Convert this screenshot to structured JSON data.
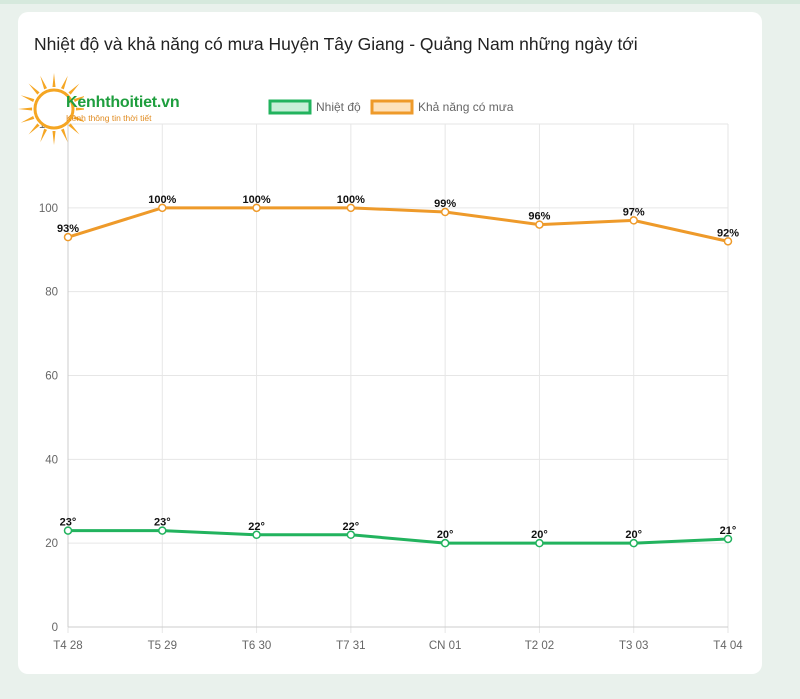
{
  "page": {
    "title": "Nhiệt độ và khả năng có mưa Huyện Tây Giang - Quảng Nam những ngày tới"
  },
  "logo": {
    "name": "Kenhthoitiet.vn",
    "tagline": "Kênh thông tin thời tiết"
  },
  "colors": {
    "temperature": "#22b35e",
    "rain": "#ee9a2a",
    "grid": "#e6e6e6",
    "logo_sun": "#f5a623",
    "logo_text": "#1e9e3e"
  },
  "chart_data": {
    "type": "line",
    "categories": [
      "T4 28",
      "T5 29",
      "T6 30",
      "T7 31",
      "CN 01",
      "T2 02",
      "T3 03",
      "T4 04"
    ],
    "ylim": [
      0,
      120
    ],
    "yticks": [
      0,
      20,
      40,
      60,
      80,
      100,
      120
    ],
    "grid": true,
    "legend_position": "top",
    "series": [
      {
        "name": "Nhiệt độ",
        "values": [
          23,
          23,
          22,
          22,
          20,
          20,
          20,
          21
        ],
        "labels": [
          "23°",
          "23°",
          "22°",
          "22°",
          "20°",
          "20°",
          "20°",
          "21°"
        ],
        "color": "#22b35e"
      },
      {
        "name": "Khả năng có mưa",
        "values": [
          93,
          100,
          100,
          100,
          99,
          96,
          97,
          92
        ],
        "labels": [
          "93%",
          "100%",
          "100%",
          "100%",
          "99%",
          "96%",
          "97%",
          "92%"
        ],
        "color": "#ee9a2a"
      }
    ]
  }
}
